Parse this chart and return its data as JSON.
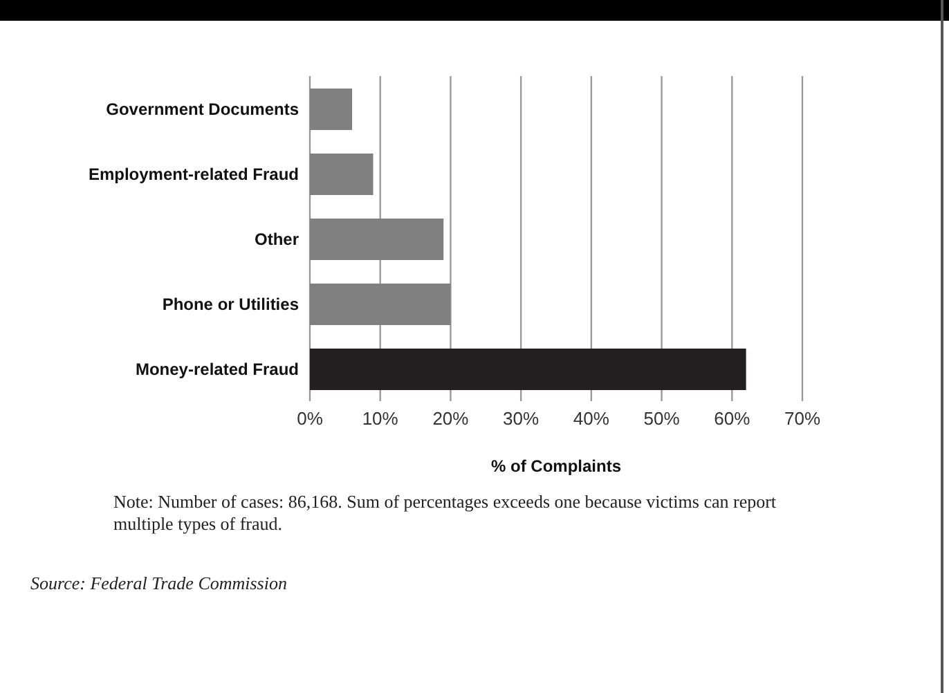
{
  "chart_data": {
    "type": "bar",
    "orientation": "horizontal",
    "categories": [
      "Government Documents",
      "Employment-related Fraud",
      "Other",
      "Phone or Utilities",
      "Money-related Fraud"
    ],
    "values": [
      6,
      9,
      19,
      20,
      62
    ],
    "colors": [
      "#808080",
      "#808080",
      "#808080",
      "#808080",
      "#231f20"
    ],
    "xlabel": "% of Complaints",
    "xlim": [
      0,
      70
    ],
    "xticks": [
      {
        "value": 0,
        "label": "0%"
      },
      {
        "value": 10,
        "label": "10%"
      },
      {
        "value": 20,
        "label": "20%"
      },
      {
        "value": 30,
        "label": "30%"
      },
      {
        "value": 40,
        "label": "40%"
      },
      {
        "value": 50,
        "label": "50%"
      },
      {
        "value": 60,
        "label": "60%"
      },
      {
        "value": 70,
        "label": "70%"
      }
    ],
    "grid": "x",
    "annotations": [
      "Note: Number of cases: 86,168. Sum of percentages exceeds one because victims can report multiple types of fraud.",
      "Source: Federal Trade Commission"
    ]
  }
}
